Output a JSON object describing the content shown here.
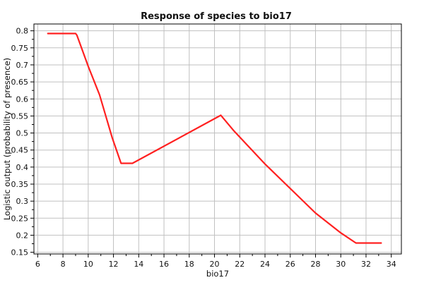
{
  "chart_data": {
    "type": "line",
    "title": "Response of species to bio17",
    "xlabel": "bio17",
    "ylabel": "Logistic output (probability of presence)",
    "xlim": [
      5.7,
      34.8
    ],
    "ylim": [
      0.145,
      0.82
    ],
    "x_ticks": [
      6,
      8,
      10,
      12,
      14,
      16,
      18,
      20,
      22,
      24,
      26,
      28,
      30,
      32,
      34
    ],
    "y_ticks": [
      0.15,
      0.2,
      0.25,
      0.3,
      0.35,
      0.4,
      0.45,
      0.5,
      0.55,
      0.6,
      0.65,
      0.7,
      0.75,
      0.8
    ],
    "y_tick_labels": [
      "0.15",
      "0.2",
      "0.25",
      "0.3",
      "0.35",
      "0.4",
      "0.45",
      "0.5",
      "0.55",
      "0.6",
      "0.65",
      "0.7",
      "0.75",
      "0.8"
    ],
    "grid": true,
    "series": [
      {
        "color": "#ff2020",
        "x": [
          6.8,
          9.0,
          9.1,
          10.0,
          10.9,
          11.9,
          12.6,
          13.5,
          20.5,
          21.5,
          24.0,
          28.0,
          30.0,
          31.2,
          33.2
        ],
        "y": [
          0.792,
          0.792,
          0.787,
          0.696,
          0.612,
          0.486,
          0.411,
          0.411,
          0.552,
          0.508,
          0.409,
          0.265,
          0.207,
          0.177,
          0.177
        ]
      }
    ]
  }
}
